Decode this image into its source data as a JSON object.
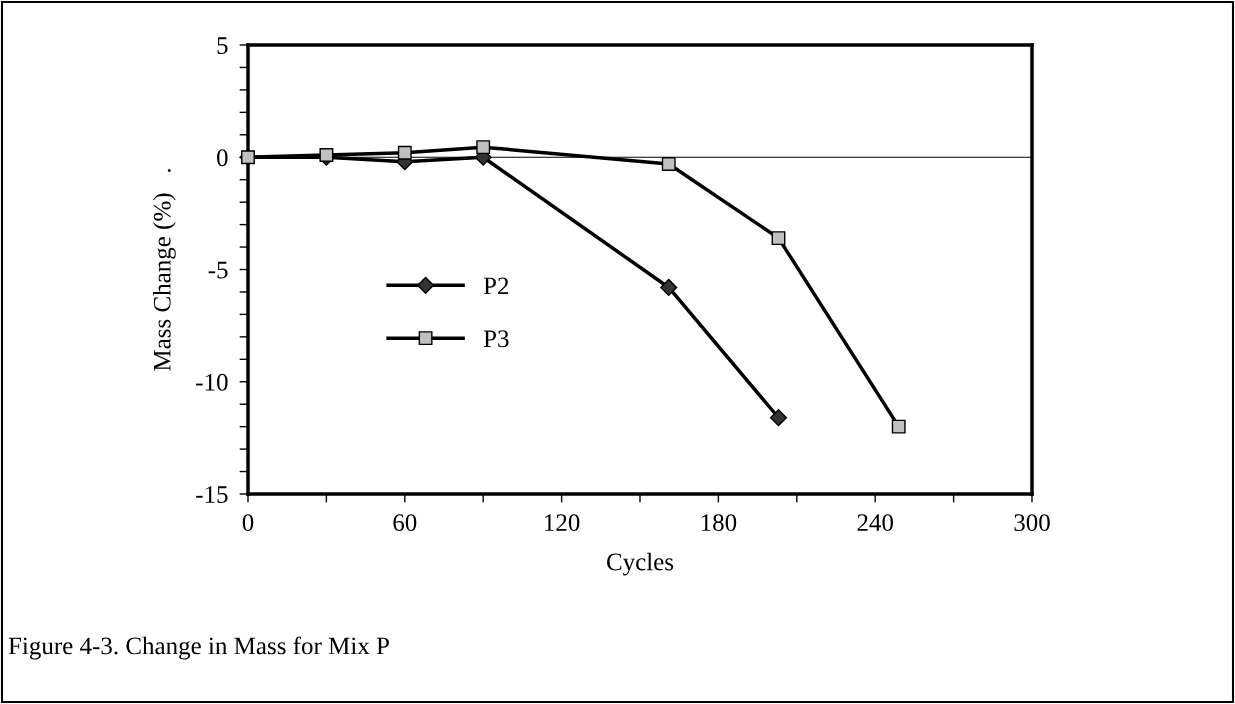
{
  "chart_data": {
    "type": "line",
    "xlabel": "Cycles",
    "ylabel": "Mass Change (%)   .",
    "annotations": [
      "Figure 4-3. Change in Mass for Mix P"
    ],
    "series": [
      {
        "name": "P2",
        "color": "#333333",
        "marker": "diamond",
        "x": [
          0,
          30,
          60,
          90,
          161,
          203
        ],
        "values": [
          0,
          0,
          -0.2,
          0,
          -5.8,
          -11.6
        ]
      },
      {
        "name": "P3",
        "color": "#c0c0c0",
        "marker": "square",
        "x": [
          0,
          30,
          60,
          90,
          161,
          203,
          249
        ],
        "values": [
          0,
          0.1,
          0.2,
          0.45,
          -0.3,
          -3.6,
          -12.0
        ]
      }
    ],
    "xlim": [
      0,
      300
    ],
    "ylim": [
      -15,
      5
    ],
    "xticks": [
      0,
      {
        "value": 30,
        "label": null
      },
      60,
      {
        "value": 90,
        "label": null
      },
      120,
      {
        "value": 150,
        "label": null
      },
      180,
      {
        "value": 210,
        "label": null
      },
      240,
      {
        "value": 270,
        "label": null
      },
      300
    ],
    "yticks": [
      {
        "value": -15,
        "label": "-15"
      },
      {
        "value": -14,
        "label": null
      },
      {
        "value": -13,
        "label": null
      },
      {
        "value": -12,
        "label": null
      },
      {
        "value": -11,
        "label": null
      },
      {
        "value": -10,
        "label": "-10"
      },
      {
        "value": -9,
        "label": null
      },
      {
        "value": -8,
        "label": null
      },
      {
        "value": -7,
        "label": null
      },
      {
        "value": -6,
        "label": null
      },
      {
        "value": -5,
        "label": "-5"
      },
      {
        "value": -4,
        "label": null
      },
      {
        "value": -3,
        "label": null
      },
      {
        "value": -2,
        "label": null
      },
      {
        "value": -1,
        "label": null
      },
      0,
      {
        "value": 1,
        "label": null
      },
      {
        "value": 2,
        "label": null
      },
      {
        "value": 3,
        "label": null
      },
      {
        "value": 4,
        "label": null
      },
      5
    ],
    "ref_lines": [
      {
        "axis": "y",
        "value": 0,
        "label": null,
        "color": "#000000"
      }
    ],
    "grid": false,
    "legend": "left",
    "line_style": "solid"
  }
}
